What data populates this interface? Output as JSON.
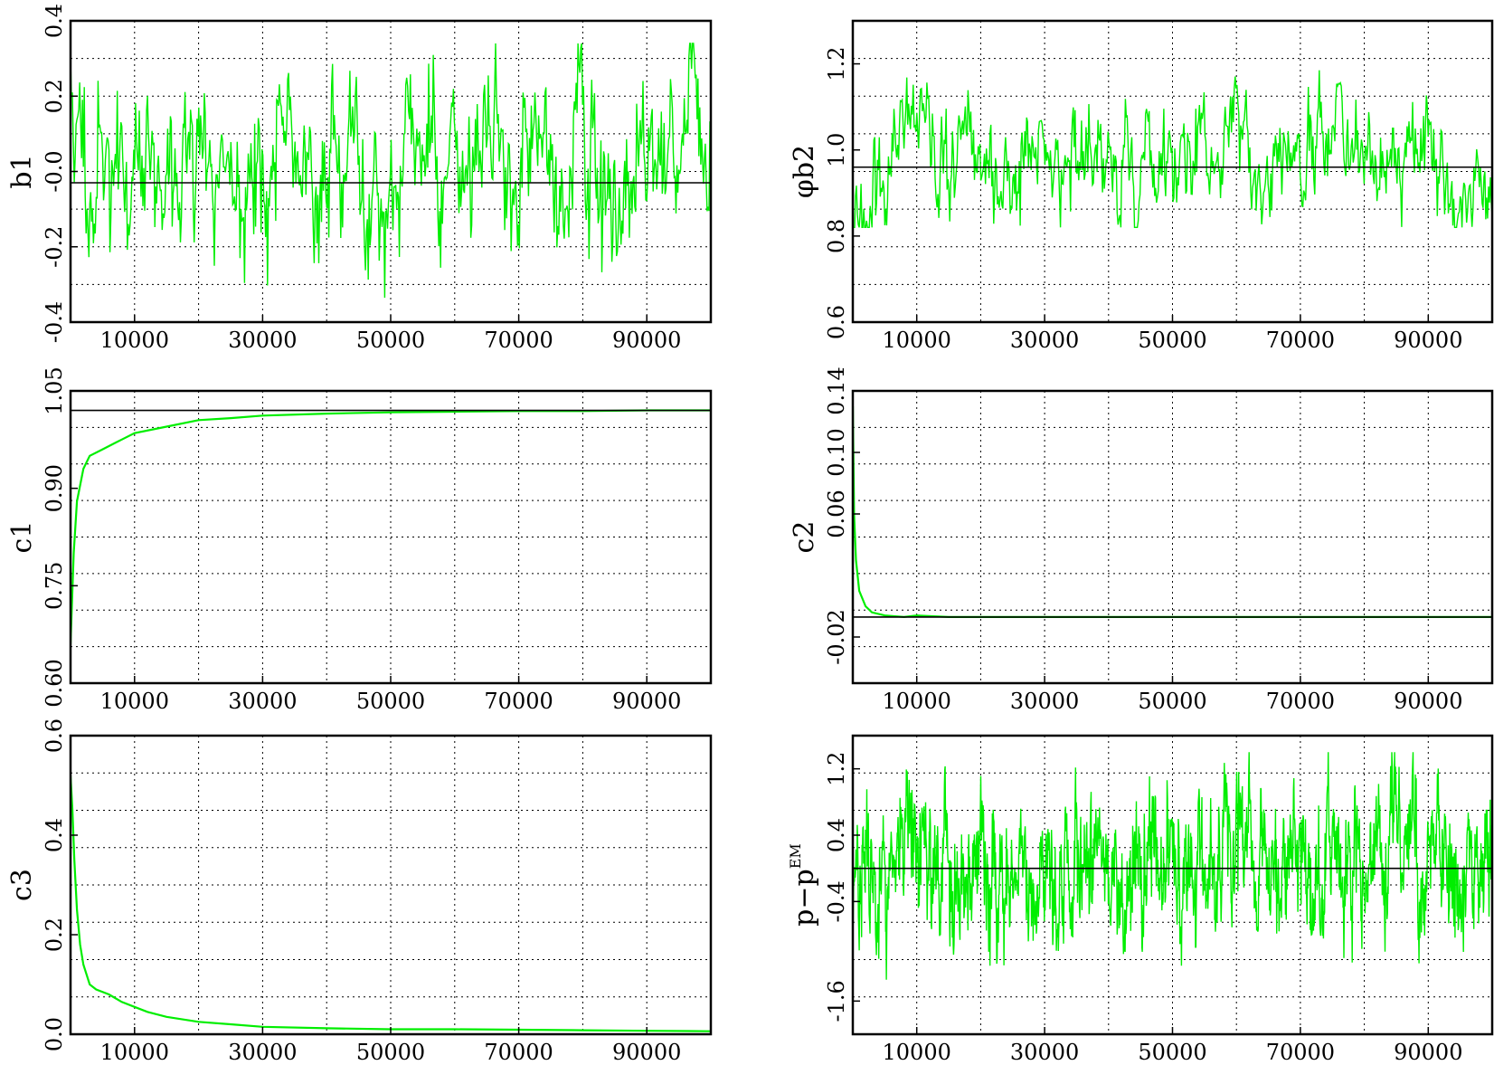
{
  "chart_data": [
    {
      "type": "line",
      "ylabel": "b1",
      "xlim": [
        0,
        100000
      ],
      "ylim": [
        -0.4,
        0.4
      ],
      "x_ticks": [
        10000,
        30000,
        50000,
        70000,
        90000
      ],
      "x_tick_labels": [
        "10000",
        "30000",
        "50000",
        "70000",
        "90000"
      ],
      "y_ticks": [
        -0.4,
        -0.2,
        0.0,
        0.2,
        0.4
      ],
      "y_tick_labels": [
        "-0.4",
        "-0.2",
        "-0.0",
        "0.2",
        "0.4"
      ],
      "grid": true,
      "reference_line": -0.03,
      "series": [
        {
          "color": "#00ee00",
          "trace": {
            "start": 0.3,
            "level": 0.01,
            "noise": 0.12,
            "peak": 0.34,
            "low": -0.38,
            "n": 700,
            "seed": 11
          }
        }
      ]
    },
    {
      "type": "line",
      "ylabel": "φb2",
      "xlim": [
        0,
        100000
      ],
      "ylim": [
        0.6,
        1.3
      ],
      "x_ticks": [
        10000,
        30000,
        50000,
        70000,
        90000
      ],
      "x_tick_labels": [
        "10000",
        "30000",
        "50000",
        "70000",
        "90000"
      ],
      "y_ticks": [
        0.6,
        0.8,
        1.0,
        1.2
      ],
      "y_tick_labels": [
        "0.6",
        "0.8",
        "1.0",
        "1.2"
      ],
      "grid": true,
      "reference_line": 0.96,
      "series": [
        {
          "color": "#00ee00",
          "trace": {
            "start": 0.7,
            "level": 0.96,
            "noise": 0.07,
            "peak": 1.22,
            "low": 0.82,
            "n": 700,
            "seed": 23
          }
        }
      ]
    },
    {
      "type": "line",
      "ylabel": "c1",
      "xlim": [
        0,
        100000
      ],
      "ylim": [
        0.6,
        1.05
      ],
      "x_ticks": [
        10000,
        30000,
        50000,
        70000,
        90000
      ],
      "x_tick_labels": [
        "10000",
        "30000",
        "50000",
        "70000",
        "90000"
      ],
      "y_ticks": [
        0.6,
        0.75,
        0.9,
        1.05
      ],
      "y_tick_labels": [
        "0.60",
        "0.75",
        "0.90",
        "1.05"
      ],
      "grid": true,
      "reference_line": 1.02,
      "series": [
        {
          "color": "#00ee00",
          "points": [
            [
              0,
              0.66
            ],
            [
              500,
              0.8
            ],
            [
              1000,
              0.88
            ],
            [
              2000,
              0.93
            ],
            [
              3000,
              0.95
            ],
            [
              5000,
              0.96
            ],
            [
              8000,
              0.975
            ],
            [
              10000,
              0.985
            ],
            [
              15000,
              0.995
            ],
            [
              20000,
              1.005
            ],
            [
              25000,
              1.008
            ],
            [
              30000,
              1.012
            ],
            [
              40000,
              1.015
            ],
            [
              50000,
              1.017
            ],
            [
              60000,
              1.018
            ],
            [
              70000,
              1.019
            ],
            [
              80000,
              1.019
            ],
            [
              90000,
              1.02
            ],
            [
              100000,
              1.02
            ]
          ]
        }
      ]
    },
    {
      "type": "line",
      "ylabel": "c2",
      "xlim": [
        0,
        100000
      ],
      "ylim": [
        -0.05,
        0.14
      ],
      "x_ticks": [
        10000,
        30000,
        50000,
        70000,
        90000
      ],
      "x_tick_labels": [
        "10000",
        "30000",
        "50000",
        "70000",
        "90000"
      ],
      "y_ticks": [
        -0.02,
        0.06,
        0.1,
        0.14
      ],
      "y_tick_labels": [
        "-0.02",
        "0.06",
        "0.10",
        "0.14"
      ],
      "grid": true,
      "reference_line": -0.007,
      "series": [
        {
          "color": "#00ee00",
          "points": [
            [
              0,
              0.13
            ],
            [
              200,
              0.06
            ],
            [
              500,
              0.03
            ],
            [
              1000,
              0.01
            ],
            [
              2000,
              0.0
            ],
            [
              3000,
              -0.004
            ],
            [
              5000,
              -0.006
            ],
            [
              8000,
              -0.007
            ],
            [
              10000,
              -0.006
            ],
            [
              15000,
              -0.007
            ],
            [
              20000,
              -0.007
            ],
            [
              100000,
              -0.007
            ]
          ]
        }
      ]
    },
    {
      "type": "line",
      "ylabel": "c3",
      "xlim": [
        0,
        100000
      ],
      "ylim": [
        0.0,
        0.6
      ],
      "x_ticks": [
        10000,
        30000,
        50000,
        70000,
        90000
      ],
      "x_tick_labels": [
        "10000",
        "30000",
        "50000",
        "70000",
        "90000"
      ],
      "y_ticks": [
        0.0,
        0.2,
        0.4,
        0.6
      ],
      "y_tick_labels": [
        "0.0",
        "0.2",
        "0.4",
        "0.6"
      ],
      "grid": true,
      "series": [
        {
          "color": "#00ee00",
          "points": [
            [
              0,
              0.52
            ],
            [
              300,
              0.45
            ],
            [
              600,
              0.35
            ],
            [
              1000,
              0.25
            ],
            [
              1500,
              0.18
            ],
            [
              2000,
              0.14
            ],
            [
              3000,
              0.1
            ],
            [
              4000,
              0.09
            ],
            [
              6000,
              0.08
            ],
            [
              8000,
              0.065
            ],
            [
              10000,
              0.055
            ],
            [
              12000,
              0.045
            ],
            [
              15000,
              0.035
            ],
            [
              20000,
              0.025
            ],
            [
              25000,
              0.02
            ],
            [
              30000,
              0.015
            ],
            [
              40000,
              0.012
            ],
            [
              50000,
              0.01
            ],
            [
              60000,
              0.01
            ],
            [
              70000,
              0.009
            ],
            [
              80000,
              0.008
            ],
            [
              90000,
              0.007
            ],
            [
              100000,
              0.006
            ]
          ]
        }
      ]
    },
    {
      "type": "line",
      "ylabel": "p−p",
      "ylabel_superscript": "EM",
      "xlim": [
        0,
        100000
      ],
      "ylim": [
        -2.0,
        1.6
      ],
      "x_ticks": [
        10000,
        30000,
        50000,
        70000,
        90000
      ],
      "x_tick_labels": [
        "10000",
        "30000",
        "50000",
        "70000",
        "90000"
      ],
      "y_ticks": [
        -1.6,
        -0.4,
        0.4,
        1.2
      ],
      "y_tick_labels": [
        "-1.6",
        "-0.4",
        "0.4",
        "1.2"
      ],
      "grid": true,
      "reference_line": 0.0,
      "series": [
        {
          "color": "#00ee00",
          "trace": {
            "start": 0.0,
            "level": 0.0,
            "noise": 0.45,
            "peak": 1.4,
            "low": -1.55,
            "n": 1600,
            "seed": 37
          }
        }
      ]
    }
  ]
}
